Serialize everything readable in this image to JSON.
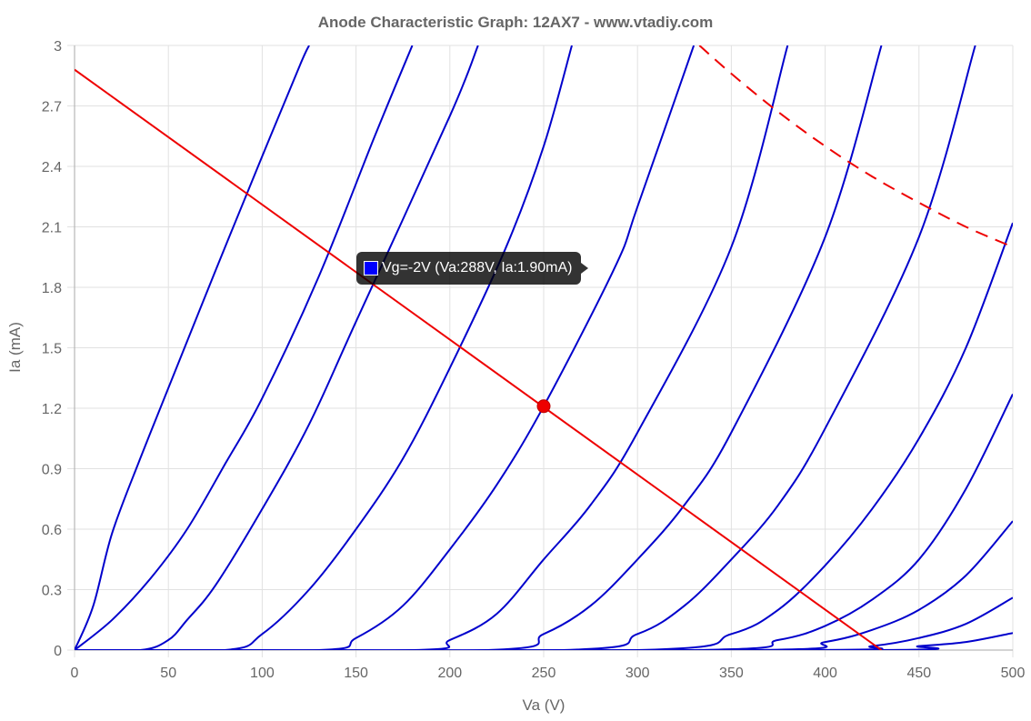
{
  "chart_data": {
    "type": "line",
    "title": "Anode Characteristic Graph: 12AX7 - www.vtadiy.com",
    "xlabel": "Va (V)",
    "ylabel": "Ia (mA)",
    "xlim": [
      0,
      500
    ],
    "ylim": [
      0,
      3
    ],
    "x_ticks": [
      "0",
      "50",
      "100",
      "150",
      "200",
      "250",
      "300",
      "350",
      "400",
      "450",
      "500"
    ],
    "y_ticks": [
      "0",
      "0.3",
      "0.6",
      "0.9",
      "1.2",
      "1.5",
      "1.8",
      "2.1",
      "2.4",
      "2.7",
      "3"
    ],
    "grid": true,
    "curve_color": "#0000cc",
    "load_line_color": "#ee0000",
    "series": [
      {
        "points": [
          [
            0,
            0
          ],
          [
            10,
            0.22
          ],
          [
            20,
            0.58
          ],
          [
            35,
            0.95
          ],
          [
            50,
            1.3
          ],
          [
            75,
            1.88
          ],
          [
            100,
            2.45
          ],
          [
            120,
            2.9
          ],
          [
            125,
            3.0
          ]
        ]
      },
      {
        "points": [
          [
            0,
            0
          ],
          [
            20,
            0.15
          ],
          [
            40,
            0.35
          ],
          [
            60,
            0.6
          ],
          [
            80,
            0.92
          ],
          [
            100,
            1.25
          ],
          [
            130,
            1.85
          ],
          [
            160,
            2.55
          ],
          [
            180,
            3.0
          ]
        ]
      },
      {
        "points": [
          [
            0,
            0
          ],
          [
            35,
            0.0
          ],
          [
            50,
            0.05
          ],
          [
            60,
            0.15
          ],
          [
            75,
            0.32
          ],
          [
            100,
            0.7
          ],
          [
            125,
            1.12
          ],
          [
            150,
            1.63
          ],
          [
            200,
            2.65
          ],
          [
            215,
            3.0
          ]
        ]
      },
      {
        "points": [
          [
            0,
            0
          ],
          [
            80,
            0.0
          ],
          [
            100,
            0.08
          ],
          [
            125,
            0.3
          ],
          [
            150,
            0.6
          ],
          [
            175,
            0.95
          ],
          [
            200,
            1.4
          ],
          [
            230,
            2.0
          ],
          [
            250,
            2.5
          ],
          [
            265,
            3.0
          ]
        ]
      },
      {
        "points": [
          [
            0,
            0
          ],
          [
            130,
            0.0
          ],
          [
            150,
            0.06
          ],
          [
            175,
            0.22
          ],
          [
            200,
            0.5
          ],
          [
            225,
            0.82
          ],
          [
            250,
            1.21
          ],
          [
            288,
            1.9
          ],
          [
            300,
            2.2
          ],
          [
            330,
            3.0
          ]
        ]
      },
      {
        "points": [
          [
            0,
            0
          ],
          [
            180,
            0.0
          ],
          [
            200,
            0.05
          ],
          [
            225,
            0.18
          ],
          [
            250,
            0.45
          ],
          [
            275,
            0.72
          ],
          [
            300,
            1.08
          ],
          [
            350,
            2.0
          ],
          [
            380,
            3.0
          ]
        ]
      },
      {
        "points": [
          [
            0,
            0
          ],
          [
            220,
            0.0
          ],
          [
            250,
            0.08
          ],
          [
            275,
            0.22
          ],
          [
            300,
            0.45
          ],
          [
            325,
            0.72
          ],
          [
            350,
            1.08
          ],
          [
            400,
            2.05
          ],
          [
            430,
            3.0
          ]
        ]
      },
      {
        "points": [
          [
            0,
            0
          ],
          [
            260,
            0.0
          ],
          [
            300,
            0.08
          ],
          [
            325,
            0.22
          ],
          [
            350,
            0.45
          ],
          [
            375,
            0.72
          ],
          [
            400,
            1.1
          ],
          [
            450,
            2.05
          ],
          [
            480,
            3.0
          ]
        ]
      },
      {
        "points": [
          [
            0,
            0
          ],
          [
            300,
            0.0
          ],
          [
            350,
            0.08
          ],
          [
            375,
            0.2
          ],
          [
            400,
            0.42
          ],
          [
            425,
            0.7
          ],
          [
            450,
            1.05
          ],
          [
            475,
            1.5
          ],
          [
            500,
            2.12
          ]
        ]
      },
      {
        "points": [
          [
            0,
            0
          ],
          [
            330,
            0.0
          ],
          [
            375,
            0.05
          ],
          [
            400,
            0.12
          ],
          [
            425,
            0.25
          ],
          [
            450,
            0.45
          ],
          [
            475,
            0.8
          ],
          [
            500,
            1.27
          ]
        ]
      },
      {
        "points": [
          [
            0,
            0
          ],
          [
            360,
            0.0
          ],
          [
            400,
            0.04
          ],
          [
            425,
            0.1
          ],
          [
            450,
            0.2
          ],
          [
            475,
            0.37
          ],
          [
            500,
            0.64
          ]
        ]
      },
      {
        "points": [
          [
            0,
            0
          ],
          [
            390,
            0.0
          ],
          [
            425,
            0.02
          ],
          [
            450,
            0.06
          ],
          [
            475,
            0.13
          ],
          [
            500,
            0.26
          ]
        ]
      },
      {
        "points": [
          [
            0,
            0
          ],
          [
            420,
            0.0
          ],
          [
            450,
            0.02
          ],
          [
            475,
            0.04
          ],
          [
            500,
            0.085
          ]
        ]
      }
    ],
    "load_line": [
      [
        0,
        2.88
      ],
      [
        430,
        0.0
      ]
    ],
    "power_curve": [
      [
        333,
        3.0
      ],
      [
        350,
        2.86
      ],
      [
        375,
        2.67
      ],
      [
        400,
        2.5
      ],
      [
        425,
        2.35
      ],
      [
        450,
        2.22
      ],
      [
        475,
        2.1
      ],
      [
        500,
        2.0
      ]
    ],
    "operating_point": {
      "x": 250,
      "y": 1.21
    },
    "tooltip": {
      "text": "Vg=-2V (Va:288V, Ia:1.90mA)",
      "swatch_color": "#0000ff"
    }
  }
}
